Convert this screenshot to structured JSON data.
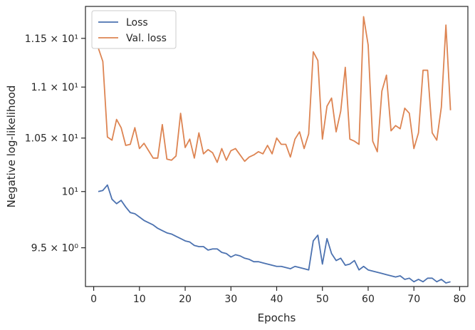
{
  "chart_data": {
    "type": "line",
    "xlabel": "Epochs",
    "ylabel": "Negative log-likelihood",
    "xlim": [
      -1.8,
      81.8
    ],
    "ylim": [
      9.17,
      11.84
    ],
    "y_scale": "log",
    "grid": false,
    "legend_position": "top-left",
    "x_ticks": [
      {
        "value": 0,
        "label": "0"
      },
      {
        "value": 10,
        "label": "10"
      },
      {
        "value": 20,
        "label": "20"
      },
      {
        "value": 30,
        "label": "30"
      },
      {
        "value": 40,
        "label": "40"
      },
      {
        "value": 50,
        "label": "50"
      },
      {
        "value": 60,
        "label": "60"
      },
      {
        "value": 70,
        "label": "70"
      },
      {
        "value": 80,
        "label": "80"
      }
    ],
    "y_ticks": [
      {
        "value": 9.5,
        "label": "9.5 × 10⁰"
      },
      {
        "value": 10,
        "label": "10¹"
      },
      {
        "value": 10.5,
        "label": "1.05 × 10¹"
      },
      {
        "value": 11,
        "label": "1.1 × 10¹"
      },
      {
        "value": 11.5,
        "label": "1.15 × 10¹"
      }
    ],
    "x": [
      1,
      2,
      3,
      4,
      5,
      6,
      7,
      8,
      9,
      10,
      11,
      12,
      13,
      14,
      15,
      16,
      17,
      18,
      19,
      20,
      21,
      22,
      23,
      24,
      25,
      26,
      27,
      28,
      29,
      30,
      31,
      32,
      33,
      34,
      35,
      36,
      37,
      38,
      39,
      40,
      41,
      42,
      43,
      44,
      45,
      46,
      47,
      48,
      49,
      50,
      51,
      52,
      53,
      54,
      55,
      56,
      57,
      58,
      59,
      60,
      61,
      62,
      63,
      64,
      65,
      66,
      67,
      68,
      69,
      70,
      71,
      72,
      73,
      74,
      75,
      76,
      77,
      78
    ],
    "series": [
      {
        "name": "Loss",
        "color": "#4c72b0",
        "values": [
          10.0,
          10.01,
          10.06,
          9.93,
          9.89,
          9.92,
          9.86,
          9.81,
          9.8,
          9.77,
          9.74,
          9.72,
          9.7,
          9.67,
          9.65,
          9.63,
          9.62,
          9.6,
          9.58,
          9.56,
          9.55,
          9.52,
          9.51,
          9.51,
          9.48,
          9.49,
          9.49,
          9.46,
          9.45,
          9.42,
          9.44,
          9.43,
          9.41,
          9.4,
          9.38,
          9.38,
          9.37,
          9.36,
          9.35,
          9.34,
          9.34,
          9.33,
          9.32,
          9.34,
          9.33,
          9.32,
          9.31,
          9.56,
          9.61,
          9.36,
          9.58,
          9.45,
          9.39,
          9.41,
          9.35,
          9.36,
          9.39,
          9.31,
          9.34,
          9.31,
          9.3,
          9.29,
          9.28,
          9.27,
          9.26,
          9.25,
          9.26,
          9.23,
          9.24,
          9.21,
          9.23,
          9.21,
          9.24,
          9.24,
          9.21,
          9.23,
          9.2,
          9.21
        ]
      },
      {
        "name": "Val. loss",
        "color": "#dd8452",
        "values": [
          11.4,
          11.26,
          10.51,
          10.48,
          10.68,
          10.6,
          10.43,
          10.44,
          10.6,
          10.4,
          10.45,
          10.38,
          10.31,
          10.31,
          10.63,
          10.3,
          10.29,
          10.33,
          10.74,
          10.41,
          10.49,
          10.31,
          10.55,
          10.35,
          10.39,
          10.36,
          10.27,
          10.4,
          10.29,
          10.38,
          10.4,
          10.34,
          10.28,
          10.32,
          10.34,
          10.37,
          10.35,
          10.43,
          10.35,
          10.5,
          10.44,
          10.44,
          10.32,
          10.49,
          10.56,
          10.4,
          10.54,
          11.36,
          11.27,
          10.49,
          10.81,
          10.89,
          10.56,
          10.76,
          11.2,
          10.49,
          10.47,
          10.44,
          11.73,
          11.43,
          10.47,
          10.37,
          10.96,
          11.12,
          10.57,
          10.62,
          10.59,
          10.79,
          10.74,
          10.4,
          10.55,
          11.17,
          11.17,
          10.55,
          10.48,
          10.8,
          11.64,
          10.77
        ]
      }
    ]
  }
}
